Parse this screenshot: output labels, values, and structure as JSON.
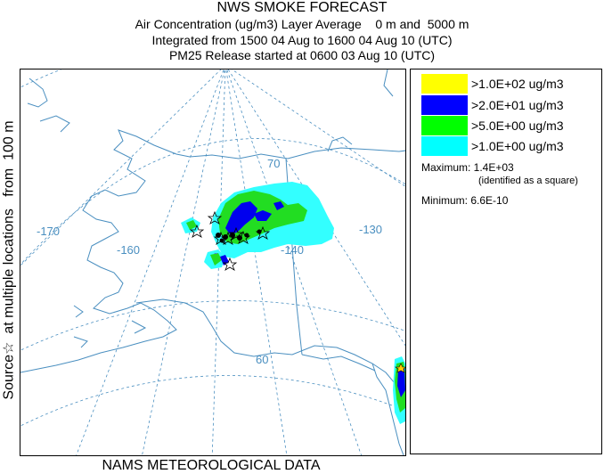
{
  "header": {
    "title": "NWS SMOKE FORECAST",
    "line2": "Air Concentration (ug/m3) Layer Average    0 m and  5000 m",
    "line3": "Integrated from 1500 04 Aug to 1600 04 Aug 10 (UTC)",
    "line4": "PM25 Release started at 0600 03 Aug 10 (UTC)"
  },
  "side_label": "Source☆  at multiple locations   from  100 m",
  "footer": "NAMS METEOROLOGICAL DATA",
  "map": {
    "labels": {
      "lat70": "70",
      "lat60": "60",
      "lon170": "-170",
      "lon160": "-160",
      "lon140": "-140",
      "lon130": "-130",
      "lon150_partial": "-"
    },
    "colors": {
      "graticule": "#4a8fc0",
      "coast": "#4a8fc0",
      "boundary": "#4a8fc0"
    }
  },
  "legend": {
    "entries": [
      {
        "label": ">1.0E+02 ug/m3",
        "color": "#ffff00"
      },
      {
        "label": ">2.0E+01 ug/m3",
        "color": "#0000ff"
      },
      {
        "label": ">5.0E+00 ug/m3",
        "color": "#00ff00"
      },
      {
        "label": ">1.0E+00 ug/m3",
        "color": "#00ffff"
      }
    ],
    "maximum_label": "Maximum: 1.4E+03",
    "maximum_note": "(identified as a square)",
    "minimum_label": "Minimum: 6.6E-10"
  }
}
